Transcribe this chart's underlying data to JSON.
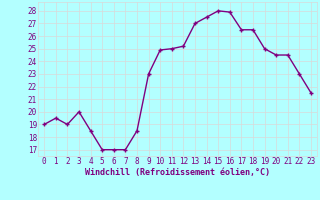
{
  "x": [
    0,
    1,
    2,
    3,
    4,
    5,
    6,
    7,
    8,
    9,
    10,
    11,
    12,
    13,
    14,
    15,
    16,
    17,
    18,
    19,
    20,
    21,
    22,
    23
  ],
  "y": [
    19,
    19.5,
    19,
    20,
    18.5,
    17,
    17,
    17,
    18.5,
    23,
    24.9,
    25,
    25.2,
    27,
    27.5,
    28,
    27.9,
    26.5,
    26.5,
    25,
    24.5,
    24.5,
    23,
    21.5
  ],
  "line_color": "#800080",
  "marker": "+",
  "marker_size": 3,
  "marker_color": "#800080",
  "bg_color": "#b3ffff",
  "grid_color": "#d9d9d9",
  "xlabel": "Windchill (Refroidissement éolien,°C)",
  "xlim": [
    -0.5,
    23.5
  ],
  "ylim": [
    16.5,
    28.7
  ],
  "yticks": [
    17,
    18,
    19,
    20,
    21,
    22,
    23,
    24,
    25,
    26,
    27,
    28
  ],
  "xticks": [
    0,
    1,
    2,
    3,
    4,
    5,
    6,
    7,
    8,
    9,
    10,
    11,
    12,
    13,
    14,
    15,
    16,
    17,
    18,
    19,
    20,
    21,
    22,
    23
  ],
  "tick_label_fontsize": 5.5,
  "xlabel_fontsize": 6,
  "line_width": 1.0
}
